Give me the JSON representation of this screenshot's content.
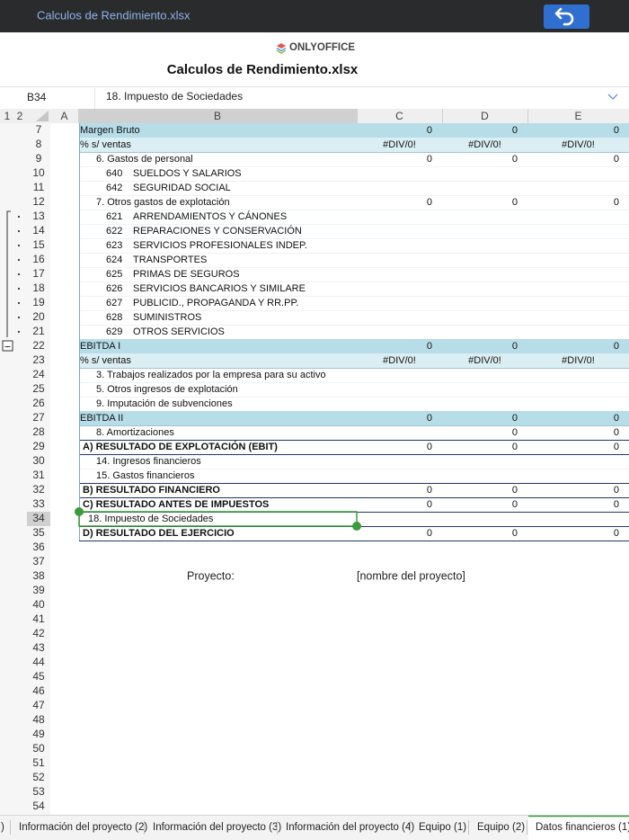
{
  "header": {
    "file_title": "Calculos de Rendimiento.xlsx",
    "brand": "ONLYOFFICE",
    "doc_title": "Calculos de Rendimiento.xlsx"
  },
  "formula_bar": {
    "cell": "B34",
    "content": "18. Impuesto de Sociedades"
  },
  "outline_levels": [
    "1",
    "2"
  ],
  "columns": [
    "A",
    "B",
    "C",
    "D",
    "E"
  ],
  "row_numbers": [
    7,
    8,
    9,
    10,
    11,
    12,
    13,
    14,
    15,
    16,
    17,
    18,
    19,
    20,
    21,
    22,
    23,
    24,
    25,
    26,
    27,
    28,
    29,
    30,
    31,
    32,
    33,
    34,
    35,
    36,
    37,
    38,
    39,
    40,
    41,
    42,
    43,
    44,
    45,
    46,
    47,
    48,
    49,
    50,
    51,
    52,
    53,
    54
  ],
  "rows": [
    {
      "label": "Margen Bruto",
      "c": "0",
      "d": "0",
      "e": "0",
      "fill": "#b7dde8"
    },
    {
      "label": "% s/ ventas",
      "c": "#DIV/0!",
      "d": "#DIV/0!",
      "e": "#DIV/0!",
      "fill": "#dbeef3"
    },
    {
      "label": "6. Gastos de personal",
      "c": "0",
      "d": "0",
      "e": "0"
    },
    {
      "code": "640",
      "label": "SUELDOS Y SALARIOS"
    },
    {
      "code": "642",
      "label": "SEGURIDAD SOCIAL"
    },
    {
      "label": "7. Otros gastos de explotación",
      "c": "0",
      "d": "0",
      "e": "0"
    },
    {
      "code": "621",
      "label": "ARRENDAMIENTOS Y CÁNONES"
    },
    {
      "code": "622",
      "label": "REPARACIONES Y CONSERVACIÓN"
    },
    {
      "code": "623",
      "label": "SERVICIOS PROFESIONALES INDEP."
    },
    {
      "code": "624",
      "label": "TRANSPORTES"
    },
    {
      "code": "625",
      "label": "PRIMAS DE SEGUROS"
    },
    {
      "code": "626",
      "label": "SERVICIOS BANCARIOS Y SIMILARE"
    },
    {
      "code": "627",
      "label": "PUBLICID., PROPAGANDA Y RR.PP."
    },
    {
      "code": "628",
      "label": "SUMINISTROS"
    },
    {
      "code": "629",
      "label": "OTROS SERVICIOS"
    },
    {
      "label": "EBITDA I",
      "c": "0",
      "d": "0",
      "e": "0",
      "fill": "#b7dde8"
    },
    {
      "label": "% s/ ventas",
      "c": "#DIV/0!",
      "d": "#DIV/0!",
      "e": "#DIV/0!",
      "fill": "#dbeef3"
    },
    {
      "label": "3. Trabajos realizados por la empresa para su activo"
    },
    {
      "label": "5. Otros ingresos de explotación"
    },
    {
      "label": "9. Imputación de subvenciones"
    },
    {
      "label": "EBITDA II",
      "c": "0",
      "d": "0",
      "e": "0",
      "fill": "#b7dde8"
    },
    {
      "label": "8. Amortizaciones",
      "d": "0",
      "e": "0"
    },
    {
      "label": "A) RESULTADO DE EXPLOTACIÓN (EBIT)",
      "c": "0",
      "d": "0",
      "e": "0",
      "bold": true
    },
    {
      "label": "14. Ingresos financieros"
    },
    {
      "label": "15. Gastos financieros"
    },
    {
      "label": "B) RESULTADO FINANCIERO",
      "c": "0",
      "d": "0",
      "e": "0",
      "bold": true
    },
    {
      "label": "C) RESULTADO ANTES DE IMPUESTOS",
      "c": "0",
      "d": "0",
      "e": "0",
      "bold": true
    },
    {
      "label": "18. Impuesto de Sociedades",
      "selected": true
    },
    {
      "label": "D) RESULTADO DEL EJERCICIO",
      "c": "0",
      "d": "0",
      "e": "0",
      "bold": true
    }
  ],
  "project": {
    "label": "Proyecto:",
    "value": "[nombre del proyecto]"
  },
  "tabs": [
    {
      "label": ")"
    },
    {
      "label": "Información del proyecto (2)"
    },
    {
      "label": "Información del proyecto (3)"
    },
    {
      "label": "Información del proyecto (4)"
    },
    {
      "label": "Equipo (1)"
    },
    {
      "label": "Equipo (2)"
    },
    {
      "label": "Datos financieros (1)",
      "active": true
    }
  ]
}
